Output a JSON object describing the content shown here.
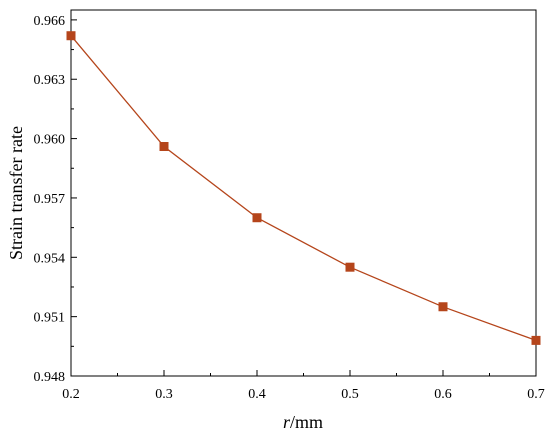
{
  "chart_data": {
    "type": "line",
    "title": "",
    "xlabel_italic": "r",
    "xlabel_rest": "/mm",
    "ylabel": "Strain transfer rate",
    "xlim": [
      0.2,
      0.7
    ],
    "ylim": [
      0.948,
      0.9665
    ],
    "x_ticks": [
      "0.2",
      "0.3",
      "0.4",
      "0.5",
      "0.6",
      "0.7"
    ],
    "y_ticks": [
      "0.948",
      "0.951",
      "0.954",
      "0.957",
      "0.960",
      "0.963",
      "0.966"
    ],
    "grid": false,
    "series": [
      {
        "color": "#b5451b",
        "marker": "square",
        "x": [
          0.2,
          0.3,
          0.4,
          0.5,
          0.6,
          0.7
        ],
        "y": [
          0.9652,
          0.9596,
          0.956,
          0.9535,
          0.9515,
          0.9498
        ]
      }
    ]
  }
}
